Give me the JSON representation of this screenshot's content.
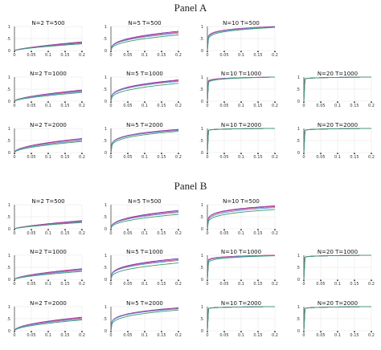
{
  "panels": [
    {
      "title": "Panel A"
    },
    {
      "title": "Panel B"
    }
  ],
  "chart_data": {
    "type": "line",
    "x_ticks": [
      "0",
      "0.05",
      "0.1",
      "0.15",
      "0.2"
    ],
    "y_ticks": [
      "0",
      ".5",
      "1"
    ],
    "xlim": [
      0,
      0.2
    ],
    "ylim": [
      0,
      1
    ],
    "grid": true,
    "colors": [
      "#7b2fa8",
      "#d44a8a",
      "#5b8fd6",
      "#3a9a6a"
    ],
    "panels": [
      {
        "title": "Panel A",
        "rows": [
          {
            "plots": [
              {
                "label": "N=2  T=500",
                "series": [
                  {
                    "y_at_0.2": 0.36,
                    "shape": 0.7
                  },
                  {
                    "y_at_0.2": 0.33,
                    "shape": 0.7
                  },
                  {
                    "y_at_0.2": 0.3,
                    "shape": 0.7
                  },
                  {
                    "y_at_0.2": 0.28,
                    "shape": 0.7
                  }
                ]
              },
              {
                "label": "N=5  T=500",
                "series": [
                  {
                    "y_at_0.2": 0.8,
                    "shape": 0.35
                  },
                  {
                    "y_at_0.2": 0.76,
                    "shape": 0.35
                  },
                  {
                    "y_at_0.2": 0.72,
                    "shape": 0.35
                  },
                  {
                    "y_at_0.2": 0.65,
                    "shape": 0.4
                  }
                ]
              },
              {
                "label": "N=10  T=500",
                "series": [
                  {
                    "y_at_0.2": 1.0,
                    "shape": 0.12
                  },
                  {
                    "y_at_0.2": 0.99,
                    "shape": 0.12
                  },
                  {
                    "y_at_0.2": 0.98,
                    "shape": 0.13
                  },
                  {
                    "y_at_0.2": 0.96,
                    "shape": 0.15
                  }
                ]
              }
            ]
          },
          {
            "plots": [
              {
                "label": "N=2  T=1000",
                "series": [
                  {
                    "y_at_0.2": 0.46,
                    "shape": 0.6
                  },
                  {
                    "y_at_0.2": 0.43,
                    "shape": 0.6
                  },
                  {
                    "y_at_0.2": 0.4,
                    "shape": 0.6
                  },
                  {
                    "y_at_0.2": 0.36,
                    "shape": 0.65
                  }
                ]
              },
              {
                "label": "N=5  T=1000",
                "series": [
                  {
                    "y_at_0.2": 0.88,
                    "shape": 0.3
                  },
                  {
                    "y_at_0.2": 0.85,
                    "shape": 0.3
                  },
                  {
                    "y_at_0.2": 0.82,
                    "shape": 0.3
                  },
                  {
                    "y_at_0.2": 0.74,
                    "shape": 0.35
                  }
                ]
              },
              {
                "label": "N=10  T=1000",
                "series": [
                  {
                    "y_at_0.2": 1.0,
                    "shape": 0.04
                  },
                  {
                    "y_at_0.2": 1.0,
                    "shape": 0.04
                  },
                  {
                    "y_at_0.2": 1.0,
                    "shape": 0.05
                  },
                  {
                    "y_at_0.2": 1.0,
                    "shape": 0.06
                  }
                ]
              },
              {
                "label": "N=20  T=1000",
                "series": [
                  {
                    "y_at_0.2": 1.0,
                    "shape": 0.02
                  },
                  {
                    "y_at_0.2": 1.0,
                    "shape": 0.02
                  },
                  {
                    "y_at_0.2": 1.0,
                    "shape": 0.02
                  },
                  {
                    "y_at_0.2": 1.0,
                    "shape": 0.02
                  }
                ]
              }
            ]
          },
          {
            "plots": [
              {
                "label": "N=2  T=2000",
                "series": [
                  {
                    "y_at_0.2": 0.58,
                    "shape": 0.5
                  },
                  {
                    "y_at_0.2": 0.55,
                    "shape": 0.5
                  },
                  {
                    "y_at_0.2": 0.5,
                    "shape": 0.5
                  },
                  {
                    "y_at_0.2": 0.46,
                    "shape": 0.55
                  }
                ]
              },
              {
                "label": "N=5  T=2000",
                "series": [
                  {
                    "y_at_0.2": 0.96,
                    "shape": 0.22
                  },
                  {
                    "y_at_0.2": 0.94,
                    "shape": 0.22
                  },
                  {
                    "y_at_0.2": 0.92,
                    "shape": 0.22
                  },
                  {
                    "y_at_0.2": 0.88,
                    "shape": 0.25
                  }
                ]
              },
              {
                "label": "N=10  T=2000",
                "series": [
                  {
                    "y_at_0.2": 1.0,
                    "shape": 0.02
                  },
                  {
                    "y_at_0.2": 1.0,
                    "shape": 0.02
                  },
                  {
                    "y_at_0.2": 1.0,
                    "shape": 0.02
                  },
                  {
                    "y_at_0.2": 1.0,
                    "shape": 0.02
                  }
                ]
              },
              {
                "label": "N=20  T=2000",
                "series": [
                  {
                    "y_at_0.2": 1.0,
                    "shape": 0.02
                  },
                  {
                    "y_at_0.2": 1.0,
                    "shape": 0.02
                  },
                  {
                    "y_at_0.2": 1.0,
                    "shape": 0.02
                  },
                  {
                    "y_at_0.2": 1.0,
                    "shape": 0.02
                  }
                ]
              }
            ]
          }
        ]
      },
      {
        "title": "Panel B",
        "rows": [
          {
            "plots": [
              {
                "label": "N=2  T=500",
                "series": [
                  {
                    "y_at_0.2": 0.34,
                    "shape": 0.7
                  },
                  {
                    "y_at_0.2": 0.31,
                    "shape": 0.7
                  },
                  {
                    "y_at_0.2": 0.28,
                    "shape": 0.7
                  },
                  {
                    "y_at_0.2": 0.26,
                    "shape": 0.7
                  }
                ]
              },
              {
                "label": "N=5  T=500",
                "series": [
                  {
                    "y_at_0.2": 0.76,
                    "shape": 0.38
                  },
                  {
                    "y_at_0.2": 0.72,
                    "shape": 0.38
                  },
                  {
                    "y_at_0.2": 0.68,
                    "shape": 0.38
                  },
                  {
                    "y_at_0.2": 0.6,
                    "shape": 0.42
                  }
                ]
              },
              {
                "label": "N=10  T=500",
                "series": [
                  {
                    "y_at_0.2": 0.95,
                    "shape": 0.18
                  },
                  {
                    "y_at_0.2": 0.92,
                    "shape": 0.18
                  },
                  {
                    "y_at_0.2": 0.88,
                    "shape": 0.2
                  },
                  {
                    "y_at_0.2": 0.8,
                    "shape": 0.22
                  }
                ]
              }
            ]
          },
          {
            "plots": [
              {
                "label": "N=2  T=1000",
                "series": [
                  {
                    "y_at_0.2": 0.44,
                    "shape": 0.6
                  },
                  {
                    "y_at_0.2": 0.41,
                    "shape": 0.6
                  },
                  {
                    "y_at_0.2": 0.37,
                    "shape": 0.6
                  },
                  {
                    "y_at_0.2": 0.33,
                    "shape": 0.65
                  }
                ]
              },
              {
                "label": "N=5  T=1000",
                "series": [
                  {
                    "y_at_0.2": 0.86,
                    "shape": 0.3
                  },
                  {
                    "y_at_0.2": 0.82,
                    "shape": 0.3
                  },
                  {
                    "y_at_0.2": 0.78,
                    "shape": 0.3
                  },
                  {
                    "y_at_0.2": 0.68,
                    "shape": 0.36
                  }
                ]
              },
              {
                "label": "N=10  T=1000",
                "series": [
                  {
                    "y_at_0.2": 1.0,
                    "shape": 0.05
                  },
                  {
                    "y_at_0.2": 1.0,
                    "shape": 0.05
                  },
                  {
                    "y_at_0.2": 0.99,
                    "shape": 0.06
                  },
                  {
                    "y_at_0.2": 0.98,
                    "shape": 0.08
                  }
                ]
              },
              {
                "label": "N=20  T=1000",
                "series": [
                  {
                    "y_at_0.2": 1.0,
                    "shape": 0.02
                  },
                  {
                    "y_at_0.2": 1.0,
                    "shape": 0.02
                  },
                  {
                    "y_at_0.2": 1.0,
                    "shape": 0.02
                  },
                  {
                    "y_at_0.2": 1.0,
                    "shape": 0.02
                  }
                ]
              }
            ]
          },
          {
            "plots": [
              {
                "label": "N=2  T=2000",
                "series": [
                  {
                    "y_at_0.2": 0.56,
                    "shape": 0.5
                  },
                  {
                    "y_at_0.2": 0.53,
                    "shape": 0.5
                  },
                  {
                    "y_at_0.2": 0.49,
                    "shape": 0.5
                  },
                  {
                    "y_at_0.2": 0.45,
                    "shape": 0.55
                  }
                ]
              },
              {
                "label": "N=5  T=2000",
                "series": [
                  {
                    "y_at_0.2": 0.95,
                    "shape": 0.22
                  },
                  {
                    "y_at_0.2": 0.93,
                    "shape": 0.22
                  },
                  {
                    "y_at_0.2": 0.91,
                    "shape": 0.22
                  },
                  {
                    "y_at_0.2": 0.86,
                    "shape": 0.26
                  }
                ]
              },
              {
                "label": "N=10  T=2000",
                "series": [
                  {
                    "y_at_0.2": 1.0,
                    "shape": 0.02
                  },
                  {
                    "y_at_0.2": 1.0,
                    "shape": 0.02
                  },
                  {
                    "y_at_0.2": 1.0,
                    "shape": 0.02
                  },
                  {
                    "y_at_0.2": 1.0,
                    "shape": 0.02
                  }
                ]
              },
              {
                "label": "N=20  T=2000",
                "series": [
                  {
                    "y_at_0.2": 1.0,
                    "shape": 0.02
                  },
                  {
                    "y_at_0.2": 1.0,
                    "shape": 0.02
                  },
                  {
                    "y_at_0.2": 1.0,
                    "shape": 0.02
                  },
                  {
                    "y_at_0.2": 1.0,
                    "shape": 0.02
                  }
                ]
              }
            ]
          }
        ]
      }
    ]
  }
}
